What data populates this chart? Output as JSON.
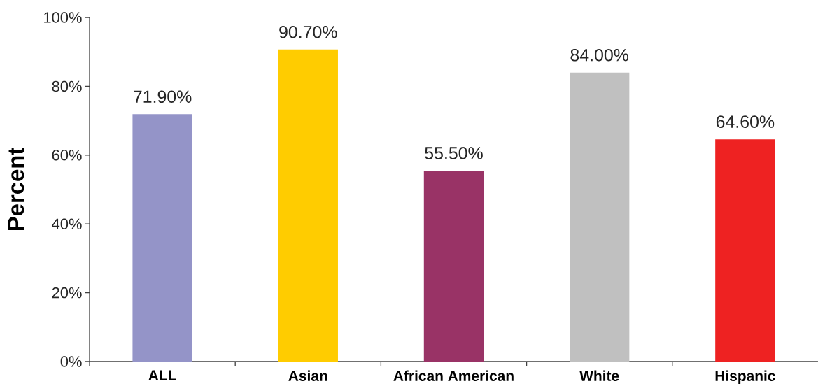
{
  "chart_data": {
    "type": "bar",
    "ylabel": "Percent",
    "categories": [
      "ALL",
      "Asian",
      "African American",
      "White",
      "Hispanic"
    ],
    "values": [
      71.9,
      90.7,
      55.5,
      84.0,
      64.6
    ],
    "colors": [
      "#9494c8",
      "#ffcc00",
      "#993366",
      "#c0c0c0",
      "#ee2222"
    ],
    "value_labels": [
      "71.90%",
      "90.70%",
      "55.50%",
      "84.00%",
      "64.60%"
    ],
    "ylim": [
      0,
      100
    ],
    "yticks": [
      {
        "value": 0,
        "label": "0%"
      },
      {
        "value": 20,
        "label": "20%"
      },
      {
        "value": 40,
        "label": "40%"
      },
      {
        "value": 60,
        "label": "60%"
      },
      {
        "value": 80,
        "label": "80%"
      },
      {
        "value": 100,
        "label": "100%"
      }
    ]
  }
}
